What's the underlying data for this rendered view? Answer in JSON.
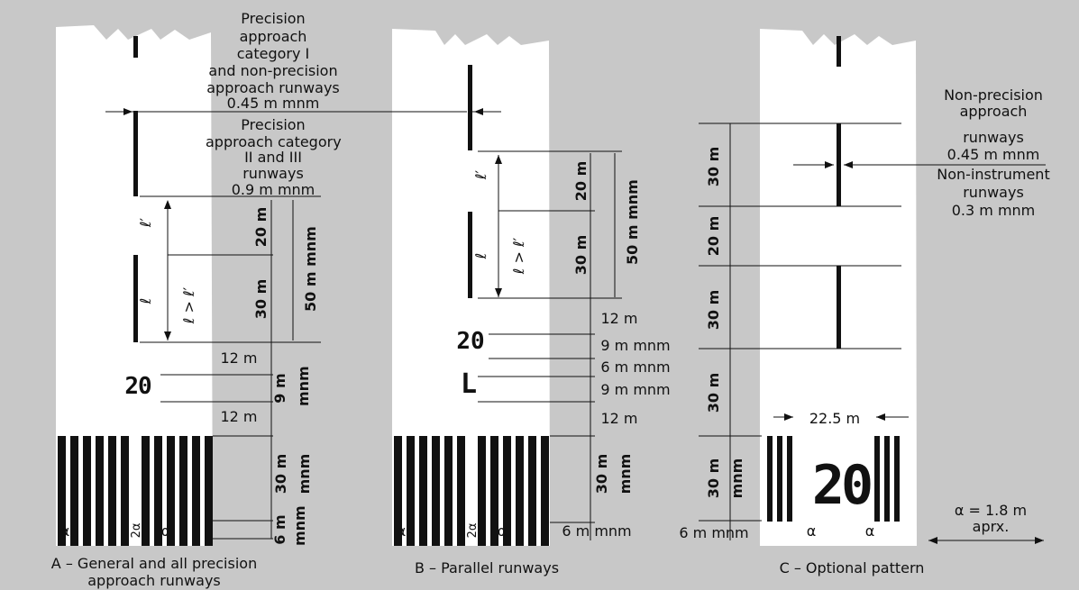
{
  "panels": {
    "a_caption_1": "A – General and all precision",
    "a_caption_2": "approach runways",
    "b_caption": "B – Parallel runways",
    "c_caption": "C – Optional pattern"
  },
  "notes": {
    "cat1_1": "Precision",
    "cat1_2": "approach",
    "cat1_3": "category I",
    "cat1_4": "and non-precision",
    "cat1_5": "approach runways",
    "cat1_6": "0.45 m mnm",
    "cat23_1": "Precision",
    "cat23_2": "approach category",
    "cat23_3": "II and III",
    "cat23_4": "runways",
    "cat23_5": "0.9 m mnm",
    "np_1": "Non-precision",
    "np_2": "approach",
    "np_3": "runways",
    "np_4": "0.45 m mnm",
    "ni_1": "Non-instrument",
    "ni_2": "runways",
    "ni_3": "0.3 m mnm",
    "alpha_1": "α = 1.8 m",
    "alpha_2": "aprx."
  },
  "runway_numbers": {
    "a": "20",
    "b_number": "20",
    "b_letter": "L",
    "c": "20"
  },
  "dims": {
    "d20": "20 m",
    "d30": "30 m",
    "d50": "50 m mnm",
    "d12": "12 m",
    "d9": "9 m",
    "mnm": "mnm",
    "d9mnm": "9 m mnm",
    "d6mnm": "6 m mnm",
    "d6": "6 m",
    "d30m": "30 m",
    "d6mmnm": "6 m mnm",
    "d225": "22.5 m",
    "alpha": "α",
    "two_alpha": "2α",
    "l_prime": "ℓ′",
    "l": "ℓ",
    "l_ge": "ℓ > ℓ′"
  }
}
